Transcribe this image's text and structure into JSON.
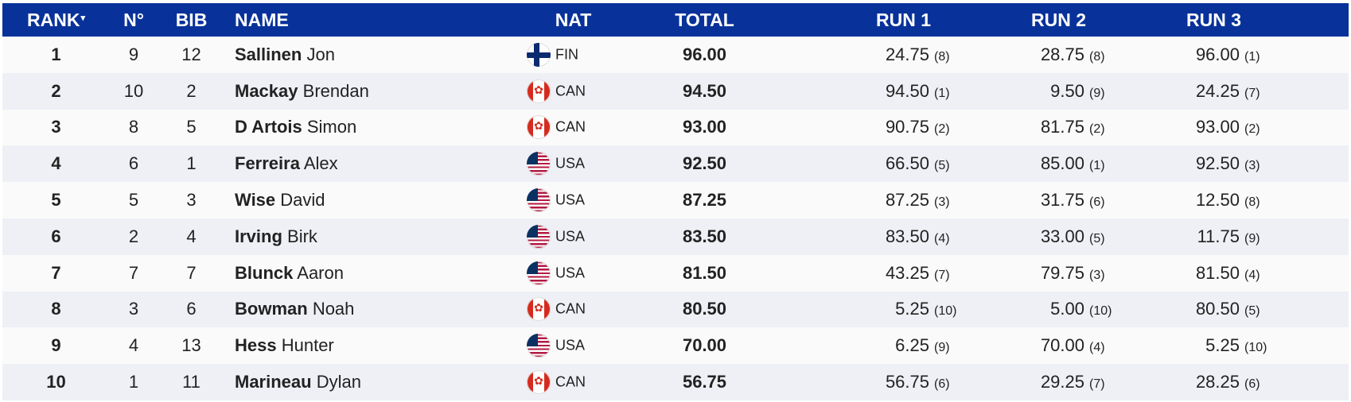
{
  "columns": {
    "rank": "RANK",
    "no": "N°",
    "bib": "BIB",
    "name": "NAME",
    "nat": "NAT",
    "total": "TOTAL",
    "run1": "RUN 1",
    "run2": "RUN 2",
    "run3": "RUN 3"
  },
  "sort_indicator": "▾",
  "colors": {
    "header_bg": "#08329a",
    "row_alt": "#eef0f6"
  },
  "rows": [
    {
      "rank": "1",
      "no": "9",
      "bib": "12",
      "last": "Sallinen",
      "first": "Jon",
      "nat": "FIN",
      "total": "96.00",
      "r1": "24.75",
      "r1p": "(8)",
      "r2": "28.75",
      "r2p": "(8)",
      "r3": "96.00",
      "r3p": "(1)"
    },
    {
      "rank": "2",
      "no": "10",
      "bib": "2",
      "last": "Mackay",
      "first": "Brendan",
      "nat": "CAN",
      "total": "94.50",
      "r1": "94.50",
      "r1p": "(1)",
      "r2": "9.50",
      "r2p": "(9)",
      "r3": "24.25",
      "r3p": "(7)"
    },
    {
      "rank": "3",
      "no": "8",
      "bib": "5",
      "last": "D Artois",
      "first": "Simon",
      "nat": "CAN",
      "total": "93.00",
      "r1": "90.75",
      "r1p": "(2)",
      "r2": "81.75",
      "r2p": "(2)",
      "r3": "93.00",
      "r3p": "(2)"
    },
    {
      "rank": "4",
      "no": "6",
      "bib": "1",
      "last": "Ferreira",
      "first": "Alex",
      "nat": "USA",
      "total": "92.50",
      "r1": "66.50",
      "r1p": "(5)",
      "r2": "85.00",
      "r2p": "(1)",
      "r3": "92.50",
      "r3p": "(3)"
    },
    {
      "rank": "5",
      "no": "5",
      "bib": "3",
      "last": "Wise",
      "first": "David",
      "nat": "USA",
      "total": "87.25",
      "r1": "87.25",
      "r1p": "(3)",
      "r2": "31.75",
      "r2p": "(6)",
      "r3": "12.50",
      "r3p": "(8)"
    },
    {
      "rank": "6",
      "no": "2",
      "bib": "4",
      "last": "Irving",
      "first": "Birk",
      "nat": "USA",
      "total": "83.50",
      "r1": "83.50",
      "r1p": "(4)",
      "r2": "33.00",
      "r2p": "(5)",
      "r3": "11.75",
      "r3p": "(9)"
    },
    {
      "rank": "7",
      "no": "7",
      "bib": "7",
      "last": "Blunck",
      "first": "Aaron",
      "nat": "USA",
      "total": "81.50",
      "r1": "43.25",
      "r1p": "(7)",
      "r2": "79.75",
      "r2p": "(3)",
      "r3": "81.50",
      "r3p": "(4)"
    },
    {
      "rank": "8",
      "no": "3",
      "bib": "6",
      "last": "Bowman",
      "first": "Noah",
      "nat": "CAN",
      "total": "80.50",
      "r1": "5.25",
      "r1p": "(10)",
      "r2": "5.00",
      "r2p": "(10)",
      "r3": "80.50",
      "r3p": "(5)"
    },
    {
      "rank": "9",
      "no": "4",
      "bib": "13",
      "last": "Hess",
      "first": "Hunter",
      "nat": "USA",
      "total": "70.00",
      "r1": "6.25",
      "r1p": "(9)",
      "r2": "70.00",
      "r2p": "(4)",
      "r3": "5.25",
      "r3p": "(10)"
    },
    {
      "rank": "10",
      "no": "1",
      "bib": "11",
      "last": "Marineau",
      "first": "Dylan",
      "nat": "CAN",
      "total": "56.75",
      "r1": "56.75",
      "r1p": "(6)",
      "r2": "29.25",
      "r2p": "(7)",
      "r3": "28.25",
      "r3p": "(6)"
    }
  ]
}
